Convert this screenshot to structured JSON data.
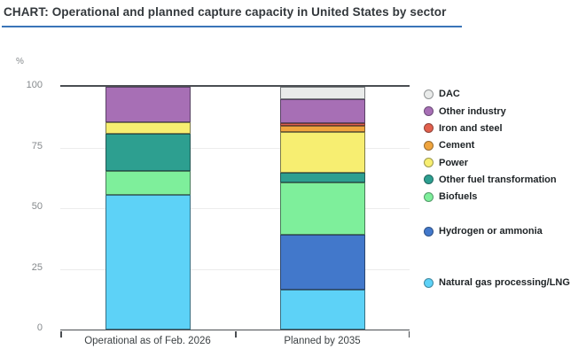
{
  "header": {
    "title": "CHART: Operational and planned capture capacity in United States by sector",
    "underline_color": "#3a74b8"
  },
  "chart_data": {
    "type": "bar",
    "stacked": true,
    "title": "CHART: Operational and planned capture capacity in United States by sector",
    "unit": "%",
    "xlabel": "",
    "ylabel": "%",
    "ylim": [
      0,
      100
    ],
    "yticks": [
      0,
      25,
      50,
      75,
      100
    ],
    "grid": true,
    "legend_position": "right",
    "categories": [
      "Operational as of Feb. 2026",
      "Planned by 2035"
    ],
    "series": [
      {
        "name": "Natural gas processing/LNG",
        "color": "#5dd2f7",
        "values": [
          55.5,
          16.5
        ]
      },
      {
        "name": "Hydrogen or ammonia",
        "color": "#4278cb",
        "values": [
          0,
          22.5
        ]
      },
      {
        "name": "Biofuels",
        "color": "#7eef9b",
        "values": [
          10,
          21.5
        ]
      },
      {
        "name": "Other fuel transformation",
        "color": "#2d9f90",
        "values": [
          15,
          4
        ]
      },
      {
        "name": "Power",
        "color": "#f7ee71",
        "values": [
          5,
          17
        ]
      },
      {
        "name": "Cement",
        "color": "#efa43e",
        "values": [
          0,
          2.5
        ]
      },
      {
        "name": "Iron and steel",
        "color": "#e2604d",
        "values": [
          0,
          1
        ]
      },
      {
        "name": "Other industry",
        "color": "#a76fb5",
        "values": [
          14.5,
          10
        ]
      },
      {
        "name": "DAC",
        "color": "#e9ebea",
        "values": [
          0,
          5
        ]
      }
    ],
    "legend_order": [
      "DAC",
      "Other industry",
      "Iron and steel",
      "Cement",
      "Power",
      "Other fuel transformation",
      "Biofuels",
      "Hydrogen or ammonia",
      "Natural gas processing/LNG"
    ]
  }
}
